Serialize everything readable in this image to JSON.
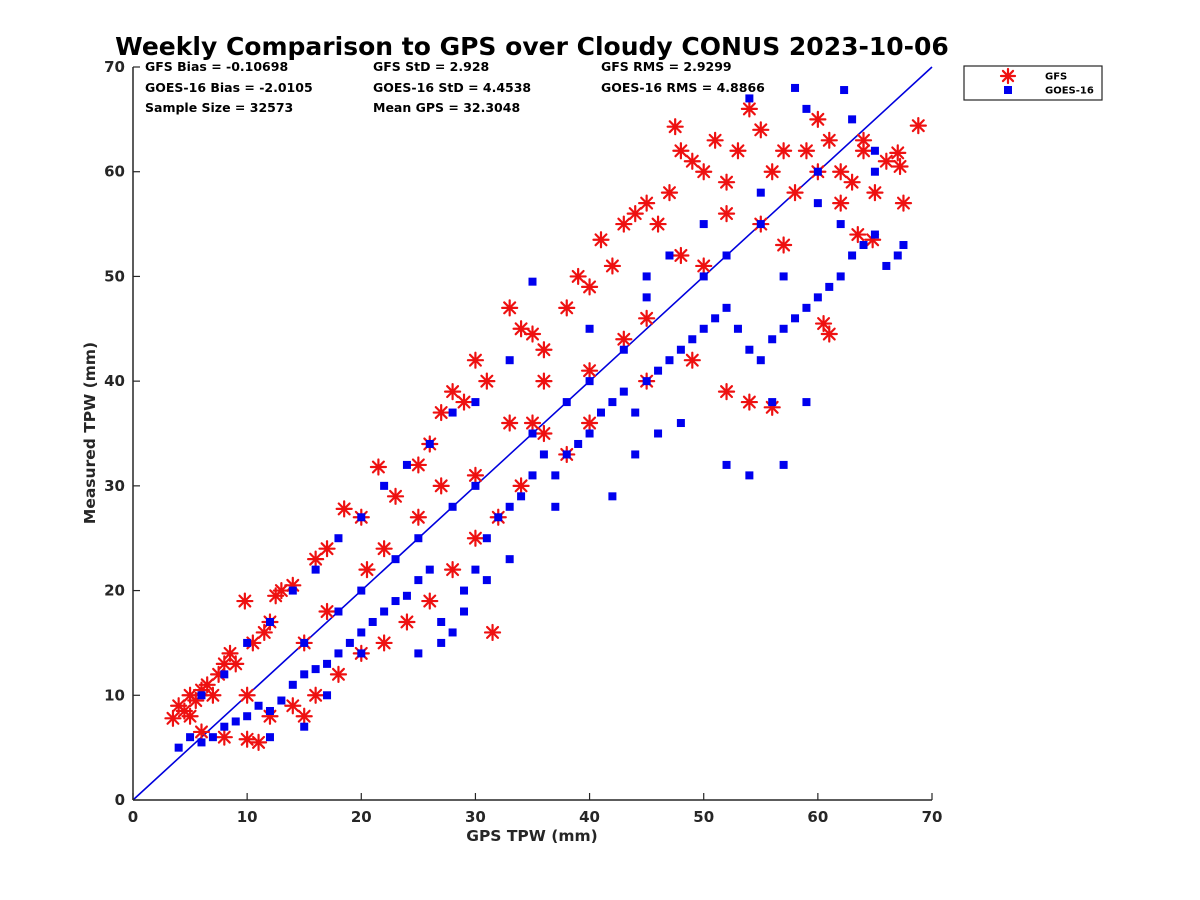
{
  "chart_data": {
    "type": "scatter",
    "title": "Weekly Comparison to GPS over Cloudy CONUS 2023-10-06",
    "xlabel": "GPS TPW (mm)",
    "ylabel": "Measured TPW (mm)",
    "xlim": [
      0,
      70
    ],
    "ylim": [
      0,
      70
    ],
    "xticks": [
      "0",
      "10",
      "20",
      "30",
      "40",
      "50",
      "60",
      "70"
    ],
    "yticks": [
      "0",
      "10",
      "20",
      "30",
      "40",
      "50",
      "60",
      "70"
    ],
    "grid": false,
    "legend_position": "outside-top-right",
    "reference_line": {
      "x": [
        0,
        70
      ],
      "y": [
        0,
        70
      ],
      "color": "#0000dd"
    },
    "stats": [
      [
        "GFS Bias = -0.10698",
        "GFS StD = 2.928",
        "GFS RMS = 2.9299"
      ],
      [
        "GOES-16 Bias = -2.0105",
        "GOES-16 StD = 4.4538",
        "GOES-16 RMS = 4.8866"
      ],
      [
        "Sample Size = 32573",
        "Mean GPS = 32.3048",
        ""
      ]
    ],
    "series": [
      {
        "name": "GFS",
        "marker": "asterisk",
        "color": "#ee1111",
        "points": [
          [
            3.5,
            7.8
          ],
          [
            4,
            9
          ],
          [
            4.5,
            8.5
          ],
          [
            5,
            10
          ],
          [
            5.5,
            9.5
          ],
          [
            6,
            10.5
          ],
          [
            6.5,
            11
          ],
          [
            7,
            10
          ],
          [
            7.5,
            12
          ],
          [
            8,
            13
          ],
          [
            8.5,
            14
          ],
          [
            9,
            13
          ],
          [
            10,
            5.8
          ],
          [
            11,
            5.5
          ],
          [
            9.8,
            19
          ],
          [
            10.5,
            15
          ],
          [
            11.5,
            16
          ],
          [
            12,
            17
          ],
          [
            12.5,
            19.5
          ],
          [
            13,
            20
          ],
          [
            14,
            20.5
          ],
          [
            15,
            8
          ],
          [
            16,
            23
          ],
          [
            17,
            24
          ],
          [
            18.5,
            27.8
          ],
          [
            20,
            27
          ],
          [
            21.5,
            31.8
          ],
          [
            23,
            29
          ],
          [
            25,
            32
          ],
          [
            26,
            34
          ],
          [
            27,
            37
          ],
          [
            28,
            39
          ],
          [
            29,
            38
          ],
          [
            30,
            42
          ],
          [
            31,
            40
          ],
          [
            31.5,
            16
          ],
          [
            33,
            47
          ],
          [
            34,
            45
          ],
          [
            35,
            44.5
          ],
          [
            36,
            43
          ],
          [
            38,
            47
          ],
          [
            39,
            50
          ],
          [
            40,
            49
          ],
          [
            41,
            53.5
          ],
          [
            42,
            51
          ],
          [
            43,
            55
          ],
          [
            44,
            56
          ],
          [
            45,
            57
          ],
          [
            46,
            55
          ],
          [
            47,
            58
          ],
          [
            47.5,
            64.3
          ],
          [
            48,
            62
          ],
          [
            49,
            61
          ],
          [
            50,
            60
          ],
          [
            51,
            63
          ],
          [
            52,
            59
          ],
          [
            53,
            62
          ],
          [
            54,
            66
          ],
          [
            55,
            64
          ],
          [
            56,
            60
          ],
          [
            57,
            62
          ],
          [
            58,
            58
          ],
          [
            59,
            62
          ],
          [
            60,
            65
          ],
          [
            61,
            63
          ],
          [
            62,
            60
          ],
          [
            63,
            59
          ],
          [
            64,
            62
          ],
          [
            65,
            58
          ],
          [
            66,
            61
          ],
          [
            67,
            61.8
          ],
          [
            67.2,
            60.5
          ],
          [
            67.5,
            57
          ],
          [
            68.8,
            64.4
          ],
          [
            64.8,
            53.5
          ],
          [
            63.5,
            54
          ],
          [
            61,
            44.5
          ],
          [
            60.5,
            45.5
          ],
          [
            56,
            37.5
          ],
          [
            54,
            38
          ],
          [
            52,
            39
          ],
          [
            49,
            42
          ],
          [
            45,
            40
          ],
          [
            43,
            44
          ],
          [
            40,
            36
          ],
          [
            38,
            33
          ],
          [
            36,
            35
          ],
          [
            34,
            30
          ],
          [
            32,
            27
          ],
          [
            30,
            25
          ],
          [
            28,
            22
          ],
          [
            26,
            19
          ],
          [
            24,
            17
          ],
          [
            22,
            15
          ],
          [
            20,
            14
          ],
          [
            18,
            12
          ],
          [
            16,
            10
          ],
          [
            14,
            9
          ],
          [
            12,
            8
          ],
          [
            8,
            6
          ],
          [
            6,
            6.5
          ],
          [
            5,
            8
          ],
          [
            20.5,
            22
          ],
          [
            25,
            27
          ],
          [
            30,
            31
          ],
          [
            35,
            36
          ],
          [
            40,
            41
          ],
          [
            45,
            46
          ],
          [
            50,
            51
          ],
          [
            55,
            55
          ],
          [
            60,
            60
          ],
          [
            15,
            15
          ],
          [
            10,
            10
          ],
          [
            48,
            52
          ],
          [
            52,
            56
          ],
          [
            57,
            53
          ],
          [
            62,
            57
          ],
          [
            64,
            63
          ],
          [
            36,
            40
          ],
          [
            33,
            36
          ],
          [
            27,
            30
          ],
          [
            22,
            24
          ],
          [
            17,
            18
          ]
        ]
      },
      {
        "name": "GOES-16",
        "marker": "square",
        "color": "#0000ee",
        "points": [
          [
            4,
            5
          ],
          [
            5,
            6
          ],
          [
            6,
            5.5
          ],
          [
            7,
            6
          ],
          [
            8,
            7
          ],
          [
            9,
            7.5
          ],
          [
            10,
            8
          ],
          [
            11,
            9
          ],
          [
            12,
            8.5
          ],
          [
            13,
            9.5
          ],
          [
            14,
            11
          ],
          [
            15,
            12
          ],
          [
            16,
            12.5
          ],
          [
            17,
            13
          ],
          [
            18,
            14
          ],
          [
            19,
            15
          ],
          [
            20,
            16
          ],
          [
            21,
            17
          ],
          [
            22,
            18
          ],
          [
            23,
            19
          ],
          [
            24,
            19.5
          ],
          [
            25,
            21
          ],
          [
            26,
            22
          ],
          [
            27,
            17
          ],
          [
            28,
            16
          ],
          [
            29,
            20
          ],
          [
            30,
            22
          ],
          [
            31,
            25
          ],
          [
            32,
            27
          ],
          [
            33,
            28
          ],
          [
            34,
            29
          ],
          [
            35,
            31
          ],
          [
            36,
            33
          ],
          [
            37,
            31
          ],
          [
            38,
            33
          ],
          [
            39,
            34
          ],
          [
            40,
            35
          ],
          [
            41,
            37
          ],
          [
            42,
            38
          ],
          [
            43,
            39
          ],
          [
            44,
            37
          ],
          [
            45,
            40
          ],
          [
            46,
            41
          ],
          [
            47,
            42
          ],
          [
            48,
            43
          ],
          [
            49,
            44
          ],
          [
            50,
            45
          ],
          [
            51,
            46
          ],
          [
            52,
            47
          ],
          [
            53,
            45
          ],
          [
            54,
            43
          ],
          [
            55,
            42
          ],
          [
            56,
            44
          ],
          [
            57,
            45
          ],
          [
            58,
            46
          ],
          [
            59,
            47
          ],
          [
            60,
            48
          ],
          [
            61,
            49
          ],
          [
            62,
            50
          ],
          [
            63,
            52
          ],
          [
            64,
            53
          ],
          [
            65,
            54
          ],
          [
            66,
            51
          ],
          [
            67,
            52
          ],
          [
            67.5,
            53
          ],
          [
            62.3,
            67.8
          ],
          [
            58,
            68
          ],
          [
            54,
            67
          ],
          [
            59,
            66
          ],
          [
            63,
            65
          ],
          [
            65,
            62
          ],
          [
            60,
            60
          ],
          [
            55,
            58
          ],
          [
            50,
            55
          ],
          [
            45,
            50
          ],
          [
            40,
            45
          ],
          [
            35,
            49.5
          ],
          [
            33,
            42
          ],
          [
            30,
            38
          ],
          [
            28,
            37
          ],
          [
            26,
            34
          ],
          [
            24,
            32
          ],
          [
            22,
            30
          ],
          [
            20,
            27
          ],
          [
            18,
            25
          ],
          [
            16,
            22
          ],
          [
            14,
            20
          ],
          [
            12,
            17
          ],
          [
            10,
            15
          ],
          [
            8,
            12
          ],
          [
            6,
            10
          ],
          [
            52,
            32
          ],
          [
            54,
            31
          ],
          [
            57,
            32
          ],
          [
            59,
            38
          ],
          [
            56,
            38
          ],
          [
            48,
            36
          ],
          [
            44,
            33
          ],
          [
            46,
            35
          ],
          [
            42,
            29
          ],
          [
            37,
            28
          ],
          [
            33,
            23
          ],
          [
            31,
            21
          ],
          [
            29,
            18
          ],
          [
            27,
            15
          ],
          [
            25,
            14
          ],
          [
            20,
            14
          ],
          [
            17,
            10
          ],
          [
            15,
            7
          ],
          [
            12,
            6
          ],
          [
            45,
            48
          ],
          [
            50,
            50
          ],
          [
            55,
            55
          ],
          [
            60,
            57
          ],
          [
            65,
            60
          ],
          [
            35,
            35
          ],
          [
            30,
            30
          ],
          [
            25,
            25
          ],
          [
            20,
            20
          ],
          [
            15,
            15
          ],
          [
            40,
            40
          ],
          [
            47,
            52
          ],
          [
            52,
            52
          ],
          [
            57,
            50
          ],
          [
            62,
            55
          ],
          [
            38,
            38
          ],
          [
            43,
            43
          ],
          [
            28,
            28
          ],
          [
            23,
            23
          ],
          [
            18,
            18
          ]
        ]
      }
    ]
  }
}
